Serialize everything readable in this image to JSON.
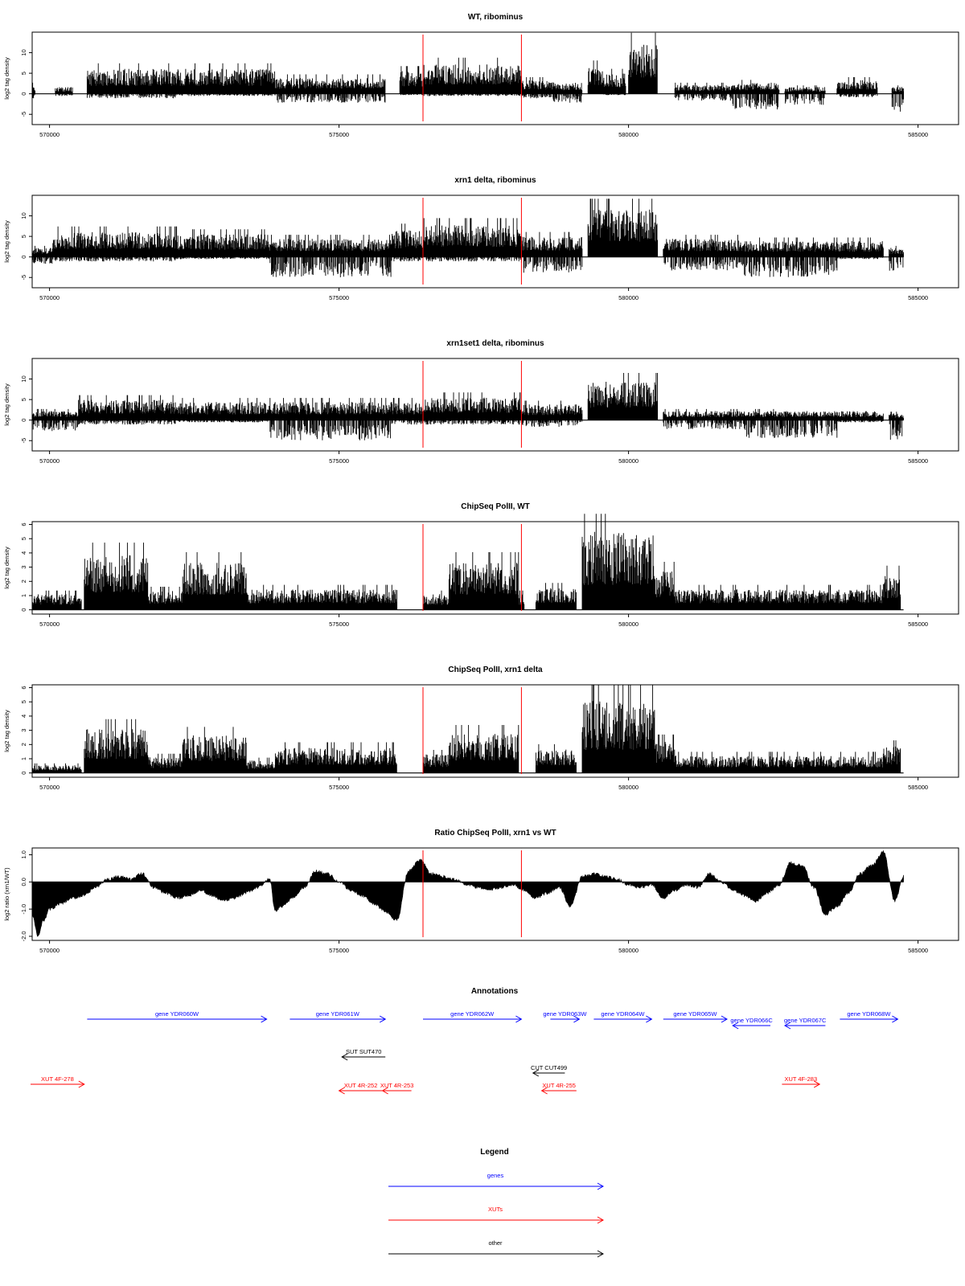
{
  "figure": {
    "annotations_title": "Annotations",
    "legend_title": "Legend"
  },
  "chart_data": [
    {
      "type": "bar",
      "title": "WT, ribominus",
      "ylabel": "log2 tag density",
      "xlim": [
        569700,
        585700
      ],
      "ylim": [
        -7.5,
        15
      ],
      "yticks": [
        -5,
        0,
        5,
        10
      ],
      "ytick_labels": [
        "-5",
        "0",
        "5",
        "10"
      ],
      "xticks": [
        570000,
        575000,
        580000,
        585000
      ],
      "xtick_labels": [
        "570000",
        "575000",
        "580000",
        "585000"
      ],
      "grid": false,
      "highlight_lines": [
        576450,
        578150
      ],
      "highlight_color": "#ff0000",
      "baseline_range": [
        569700,
        584750
      ],
      "segments": [
        {
          "from": 569700,
          "to": 569750,
          "pos": 2,
          "neg": 1
        },
        {
          "from": 570100,
          "to": 570400,
          "pos": 1.5,
          "neg": 0.5
        },
        {
          "from": 570650,
          "to": 572200,
          "pos": 5.5,
          "neg": 1
        },
        {
          "from": 572200,
          "to": 573900,
          "pos": 5.5,
          "neg": 0.5
        },
        {
          "from": 573900,
          "to": 575800,
          "pos": 3.5,
          "neg": 2
        },
        {
          "from": 576050,
          "to": 576450,
          "pos": 5,
          "neg": 0.3
        },
        {
          "from": 576450,
          "to": 578150,
          "pos": 6.5,
          "neg": 0.5
        },
        {
          "from": 578150,
          "to": 578700,
          "pos": 3,
          "neg": 1
        },
        {
          "from": 578700,
          "to": 579200,
          "pos": 2.5,
          "neg": 2
        },
        {
          "from": 579300,
          "to": 579550,
          "pos": 6,
          "neg": 0
        },
        {
          "from": 579550,
          "to": 579950,
          "pos": 4.5,
          "neg": 0.3
        },
        {
          "from": 580000,
          "to": 580500,
          "pos": 11,
          "neg": 0
        },
        {
          "from": 580800,
          "to": 581800,
          "pos": 2,
          "neg": 1.5
        },
        {
          "from": 581800,
          "to": 582600,
          "pos": 2.5,
          "neg": 3.5
        },
        {
          "from": 582700,
          "to": 583400,
          "pos": 1.5,
          "neg": 2.5
        },
        {
          "from": 583600,
          "to": 584300,
          "pos": 3,
          "neg": 0.8
        },
        {
          "from": 584550,
          "to": 584750,
          "pos": 1.5,
          "neg": 4
        }
      ]
    },
    {
      "type": "bar",
      "title": "xrn1 delta, ribominus",
      "ylabel": "log2 tag density",
      "xlim": [
        569700,
        585700
      ],
      "ylim": [
        -7.5,
        15
      ],
      "yticks": [
        -5,
        0,
        5,
        10
      ],
      "ytick_labels": [
        "-5",
        "0",
        "5",
        "10"
      ],
      "xticks": [
        570000,
        575000,
        580000,
        585000
      ],
      "xtick_labels": [
        "570000",
        "575000",
        "580000",
        "585000"
      ],
      "grid": false,
      "highlight_lines": [
        576450,
        578150
      ],
      "highlight_color": "#ff0000",
      "baseline_range": [
        569700,
        584750
      ],
      "segments": [
        {
          "from": 569700,
          "to": 570050,
          "pos": 2,
          "neg": 1.5
        },
        {
          "from": 570050,
          "to": 572200,
          "pos": 5.5,
          "neg": 1
        },
        {
          "from": 572200,
          "to": 573800,
          "pos": 5,
          "neg": 0.5
        },
        {
          "from": 573800,
          "to": 575900,
          "pos": 4,
          "neg": 4.5
        },
        {
          "from": 575900,
          "to": 576450,
          "pos": 6,
          "neg": 1
        },
        {
          "from": 576450,
          "to": 578150,
          "pos": 7,
          "neg": 1
        },
        {
          "from": 578150,
          "to": 579200,
          "pos": 4.5,
          "neg": 3.5
        },
        {
          "from": 579300,
          "to": 580500,
          "pos": 10.5,
          "neg": 0
        },
        {
          "from": 580600,
          "to": 582000,
          "pos": 4,
          "neg": 3
        },
        {
          "from": 582000,
          "to": 583600,
          "pos": 3.5,
          "neg": 4.5
        },
        {
          "from": 583600,
          "to": 584400,
          "pos": 3.5,
          "neg": 0.5
        },
        {
          "from": 584500,
          "to": 584750,
          "pos": 2,
          "neg": 3.5
        }
      ]
    },
    {
      "type": "bar",
      "title": "xrn1set1 delta, ribominus",
      "ylabel": "log2 tag density",
      "xlim": [
        569700,
        585700
      ],
      "ylim": [
        -7.5,
        15
      ],
      "yticks": [
        -5,
        0,
        5,
        10
      ],
      "ytick_labels": [
        "-5",
        "0",
        "5",
        "10"
      ],
      "xticks": [
        570000,
        575000,
        580000,
        585000
      ],
      "xtick_labels": [
        "570000",
        "575000",
        "580000",
        "585000"
      ],
      "grid": false,
      "highlight_lines": [
        576450,
        578150
      ],
      "highlight_color": "#ff0000",
      "baseline_range": [
        569700,
        584750
      ],
      "segments": [
        {
          "from": 569700,
          "to": 570500,
          "pos": 2,
          "neg": 2.5
        },
        {
          "from": 570500,
          "to": 572200,
          "pos": 4.5,
          "neg": 1
        },
        {
          "from": 572200,
          "to": 573800,
          "pos": 4,
          "neg": 0.5
        },
        {
          "from": 573800,
          "to": 575900,
          "pos": 4,
          "neg": 4.5
        },
        {
          "from": 575900,
          "to": 576450,
          "pos": 4,
          "neg": 1
        },
        {
          "from": 576450,
          "to": 578150,
          "pos": 5,
          "neg": 1
        },
        {
          "from": 578150,
          "to": 579200,
          "pos": 3.5,
          "neg": 1.5
        },
        {
          "from": 579300,
          "to": 580500,
          "pos": 8.5,
          "neg": 0
        },
        {
          "from": 580600,
          "to": 582000,
          "pos": 2,
          "neg": 2
        },
        {
          "from": 582000,
          "to": 583600,
          "pos": 2,
          "neg": 4
        },
        {
          "from": 583600,
          "to": 584400,
          "pos": 2,
          "neg": 0.5
        },
        {
          "from": 584500,
          "to": 584750,
          "pos": 1.5,
          "neg": 4.5
        }
      ]
    },
    {
      "type": "bar",
      "title": "ChipSeq PolII, WT",
      "ylabel": "log2 tag density",
      "xlim": [
        569700,
        585700
      ],
      "ylim": [
        -0.3,
        6.2
      ],
      "yticks": [
        0,
        1,
        2,
        3,
        4,
        5,
        6
      ],
      "ytick_labels": [
        "0",
        "1",
        "2",
        "3",
        "4",
        "5",
        "6"
      ],
      "xticks": [
        570000,
        575000,
        580000,
        585000
      ],
      "xtick_labels": [
        "570000",
        "575000",
        "580000",
        "585000"
      ],
      "grid": false,
      "highlight_lines": [
        576450,
        578150
      ],
      "highlight_color": "#ff0000",
      "baseline_range": [
        569700,
        584750
      ],
      "segments": [
        {
          "from": 569700,
          "to": 570550,
          "pos": 1,
          "neg": 0
        },
        {
          "from": 570600,
          "to": 571700,
          "pos": 3.5,
          "neg": 0
        },
        {
          "from": 571700,
          "to": 572300,
          "pos": 1.2,
          "neg": 0
        },
        {
          "from": 572300,
          "to": 573400,
          "pos": 3,
          "neg": 0
        },
        {
          "from": 573400,
          "to": 576000,
          "pos": 1.3,
          "neg": 0
        },
        {
          "from": 576450,
          "to": 576900,
          "pos": 1,
          "neg": 0
        },
        {
          "from": 576900,
          "to": 578100,
          "pos": 3,
          "neg": 0
        },
        {
          "from": 578100,
          "to": 578200,
          "pos": 1,
          "neg": 0
        },
        {
          "from": 578400,
          "to": 579100,
          "pos": 1.4,
          "neg": 0
        },
        {
          "from": 579200,
          "to": 580450,
          "pos": 5,
          "neg": 0
        },
        {
          "from": 580450,
          "to": 580800,
          "pos": 2.5,
          "neg": 0
        },
        {
          "from": 580800,
          "to": 584400,
          "pos": 1.3,
          "neg": 0
        },
        {
          "from": 584400,
          "to": 584700,
          "pos": 2.3,
          "neg": 0
        }
      ]
    },
    {
      "type": "bar",
      "title": "ChipSeq PolII, xrn1 delta",
      "ylabel": "log2 tag density",
      "xlim": [
        569700,
        585700
      ],
      "ylim": [
        -0.3,
        6.2
      ],
      "yticks": [
        0,
        1,
        2,
        3,
        4,
        5,
        6
      ],
      "ytick_labels": [
        "0",
        "1",
        "2",
        "3",
        "4",
        "5",
        "6"
      ],
      "xticks": [
        570000,
        575000,
        580000,
        585000
      ],
      "xtick_labels": [
        "570000",
        "575000",
        "580000",
        "585000"
      ],
      "grid": false,
      "highlight_lines": [
        576450,
        578150
      ],
      "highlight_color": "#ff0000",
      "baseline_range": [
        569700,
        584750
      ],
      "segments": [
        {
          "from": 569700,
          "to": 570550,
          "pos": 0.5,
          "neg": 0
        },
        {
          "from": 570600,
          "to": 571700,
          "pos": 2.8,
          "neg": 0
        },
        {
          "from": 571700,
          "to": 572300,
          "pos": 1,
          "neg": 0
        },
        {
          "from": 572300,
          "to": 573400,
          "pos": 2.4,
          "neg": 0
        },
        {
          "from": 573400,
          "to": 573900,
          "pos": 0.8,
          "neg": 0
        },
        {
          "from": 573900,
          "to": 576000,
          "pos": 1.6,
          "neg": 0
        },
        {
          "from": 576450,
          "to": 576900,
          "pos": 1.2,
          "neg": 0
        },
        {
          "from": 576900,
          "to": 578100,
          "pos": 2.5,
          "neg": 0
        },
        {
          "from": 578400,
          "to": 579100,
          "pos": 1.5,
          "neg": 0
        },
        {
          "from": 579200,
          "to": 580450,
          "pos": 4.6,
          "neg": 0
        },
        {
          "from": 580450,
          "to": 580800,
          "pos": 2,
          "neg": 0
        },
        {
          "from": 580800,
          "to": 584400,
          "pos": 1.1,
          "neg": 0
        },
        {
          "from": 584400,
          "to": 584700,
          "pos": 1.7,
          "neg": 0
        }
      ]
    },
    {
      "type": "area",
      "title": "Ratio ChipSeq PolII, xrn1 vs WT",
      "ylabel": "log2 ratio (xrn1/WT)",
      "xlim": [
        569700,
        585700
      ],
      "ylim": [
        -2.15,
        1.25
      ],
      "yticks": [
        -2,
        -1,
        0,
        1
      ],
      "ytick_labels": [
        "-2.0",
        "-1.0",
        "0.0",
        "1.0"
      ],
      "xticks": [
        570000,
        575000,
        580000,
        585000
      ],
      "xtick_labels": [
        "570000",
        "575000",
        "580000",
        "585000"
      ],
      "grid": false,
      "highlight_lines": [
        576450,
        578150
      ],
      "highlight_color": "#ff0000",
      "x": [
        569700,
        569800,
        569900,
        570000,
        570200,
        570400,
        570600,
        570800,
        571000,
        571200,
        571400,
        571600,
        571800,
        572000,
        572200,
        572400,
        572600,
        572800,
        573000,
        573200,
        573400,
        573600,
        573800,
        573900,
        574000,
        574200,
        574400,
        574600,
        574800,
        575000,
        575200,
        575400,
        575600,
        575800,
        576000,
        576200,
        576400,
        576600,
        576800,
        577000,
        577200,
        577400,
        577600,
        577800,
        578000,
        578200,
        578400,
        578600,
        578800,
        579000,
        579200,
        579400,
        579600,
        579800,
        580000,
        580200,
        580400,
        580600,
        580800,
        581000,
        581200,
        581400,
        581600,
        581800,
        582000,
        582200,
        582400,
        582600,
        582800,
        583000,
        583200,
        583400,
        583600,
        583800,
        584000,
        584200,
        584400,
        584600,
        584750
      ],
      "y": [
        -1.2,
        -2.0,
        -1.4,
        -1.0,
        -0.8,
        -0.6,
        -0.5,
        -0.2,
        0.1,
        0.2,
        0.1,
        0.3,
        -0.2,
        -0.4,
        -0.6,
        -0.5,
        -0.3,
        -0.5,
        -0.7,
        -0.6,
        -0.4,
        -0.2,
        0.1,
        -1.1,
        -0.9,
        -0.6,
        -0.2,
        0.4,
        0.3,
        0.0,
        -0.3,
        -0.5,
        -0.8,
        -1.1,
        -1.4,
        0.4,
        0.8,
        0.3,
        0.2,
        0.1,
        -0.1,
        -0.2,
        -0.3,
        -0.2,
        -0.1,
        -0.3,
        -0.6,
        -0.4,
        -0.2,
        -0.9,
        0.2,
        0.3,
        0.2,
        0.1,
        -0.1,
        -0.2,
        -0.1,
        -0.6,
        -0.3,
        -0.1,
        -0.2,
        0.3,
        0.0,
        -0.3,
        -0.5,
        -0.7,
        -0.4,
        -0.1,
        0.7,
        0.6,
        -0.2,
        -1.2,
        -0.9,
        -0.4,
        0.3,
        0.6,
        1.1,
        -0.7,
        0.2
      ]
    }
  ],
  "annotations": {
    "features": [
      {
        "label": "gene YDR060W",
        "type": "gene",
        "start": 570650,
        "end": 573750,
        "strand": "+",
        "row": 0
      },
      {
        "label": "gene YDR061W",
        "type": "gene",
        "start": 574150,
        "end": 575800,
        "strand": "+",
        "row": 0
      },
      {
        "label": "gene YDR062W",
        "type": "gene",
        "start": 576450,
        "end": 578150,
        "strand": "+",
        "row": 0
      },
      {
        "label": "gene YDR063W",
        "type": "gene",
        "start": 578650,
        "end": 579150,
        "strand": "+",
        "row": 0
      },
      {
        "label": "gene YDR064W",
        "type": "gene",
        "start": 579400,
        "end": 580400,
        "strand": "+",
        "row": 0
      },
      {
        "label": "gene YDR065W",
        "type": "gene",
        "start": 580600,
        "end": 581700,
        "strand": "+",
        "row": 0
      },
      {
        "label": "gene YDR066C",
        "type": "gene",
        "start": 581800,
        "end": 582450,
        "strand": "-",
        "row": 1
      },
      {
        "label": "gene YDR067C",
        "type": "gene",
        "start": 582700,
        "end": 583400,
        "strand": "-",
        "row": 1
      },
      {
        "label": "gene YDR068W",
        "type": "gene",
        "start": 583650,
        "end": 584650,
        "strand": "+",
        "row": 0
      },
      {
        "label": "SUT SUT470",
        "type": "other",
        "start": 575050,
        "end": 575800,
        "strand": "-",
        "row": 3
      },
      {
        "label": "CUT CUT499",
        "type": "other",
        "start": 578350,
        "end": 578900,
        "strand": "-",
        "row": 4
      },
      {
        "label": "XUT 4F-278",
        "type": "xut",
        "start": 569350,
        "end": 570600,
        "strand": "+",
        "row": 5
      },
      {
        "label": "XUT 4R-252",
        "type": "xut",
        "start": 575000,
        "end": 575750,
        "strand": "-",
        "row": 6
      },
      {
        "label": "XUT 4R-253",
        "type": "xut",
        "start": 575750,
        "end": 576250,
        "strand": "-",
        "row": 6
      },
      {
        "label": "XUT 4R-255",
        "type": "xut",
        "start": 578500,
        "end": 579100,
        "strand": "-",
        "row": 6
      },
      {
        "label": "XUT 4F-283",
        "type": "xut",
        "start": 582650,
        "end": 583300,
        "strand": "+",
        "row": 5
      }
    ]
  },
  "legend": {
    "items": [
      {
        "label": "genes",
        "color": "#0000ff"
      },
      {
        "label": "XUTs",
        "color": "#ff0000"
      },
      {
        "label": "other",
        "color": "#000000"
      }
    ]
  },
  "colors": {
    "gene": "#0000ff",
    "xut": "#ff0000",
    "other": "#000000",
    "signal": "#000000",
    "highlight": "#ff0000"
  }
}
